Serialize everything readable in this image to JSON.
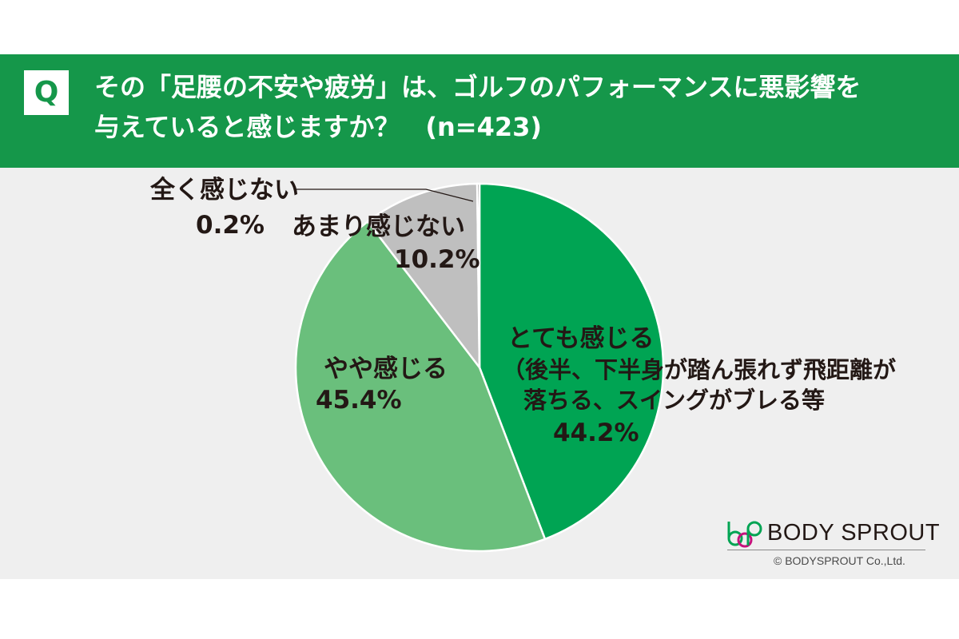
{
  "header": {
    "q_mark": "Q",
    "question_line1": "その「足腰の不安や疲労」は、ゴルフのパフォーマンスに悪影響を",
    "question_line2": "与えていると感じますか？　(n=423)",
    "bg_color": "#15974a"
  },
  "chart_data": {
    "type": "pie",
    "start_angle_deg": 0,
    "direction": "clockwise",
    "slices": [
      {
        "label": "とても感じる",
        "sublabel_1": "（後半、下半身が踏ん張れず飛距離が",
        "sublabel_2": "落ちる、スイングがブレる等",
        "value": 44.2,
        "value_text": "44.2%",
        "color": "#00a453"
      },
      {
        "label": "やや感じる",
        "value": 45.4,
        "value_text": "45.4%",
        "color": "#6abf7c"
      },
      {
        "label": "あまり感じない",
        "value": 10.2,
        "value_text": "10.2%",
        "color": "#bfbfbf"
      },
      {
        "label": "全く感じない",
        "value": 0.2,
        "value_text": "0.2%",
        "color": "#414141"
      }
    ]
  },
  "brand": {
    "name": "BODY SPROUT",
    "copyright": "© BODYSPROUT Co.,Ltd.",
    "logo_colors": [
      "#00a453",
      "#c5127c",
      "#00a453"
    ]
  }
}
